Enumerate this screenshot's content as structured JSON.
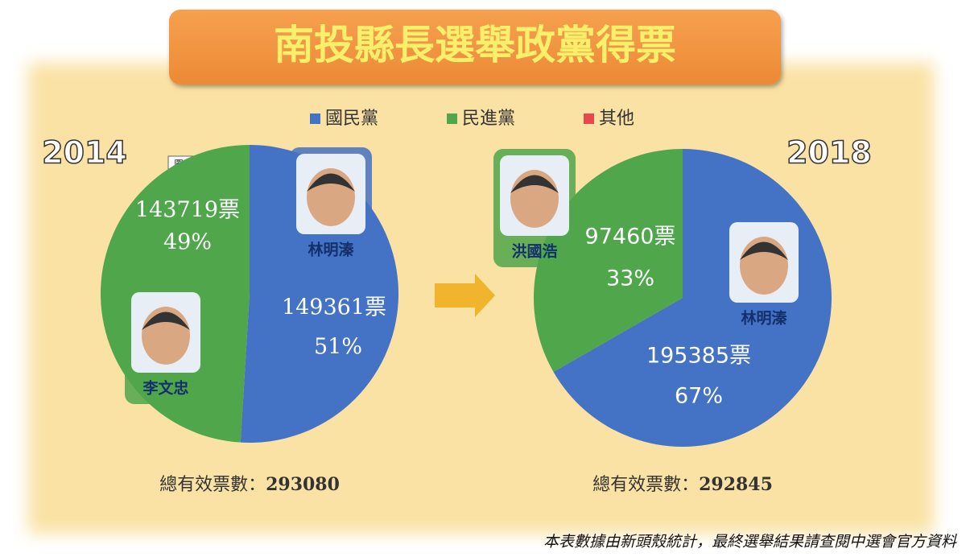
{
  "title": "南投縣長選舉政黨得票",
  "legend": [
    {
      "name": "國民黨",
      "color": "#4472c4"
    },
    {
      "name": "民進黨",
      "color": "#4fa64b"
    },
    {
      "name": "其他",
      "color": "#e8474c"
    }
  ],
  "tooltip": "圖表區",
  "footnote": "本表數據由新頭殼統計，最終選舉結果請查閱中選會官方資料",
  "chart_data": [
    {
      "type": "pie",
      "label": "2014",
      "values": [
        149361,
        143719
      ],
      "value_labels": [
        "149361票",
        "143719票"
      ],
      "shares": [
        51,
        49
      ],
      "share_labels": [
        "51%",
        "49%"
      ],
      "candidates": [
        "林明溱",
        "李文忠"
      ],
      "total_label": "總有效票數：",
      "total": 293080
    },
    {
      "type": "pie",
      "label": "2018",
      "values": [
        195385,
        97460
      ],
      "value_labels": [
        "195385票",
        "97460票"
      ],
      "shares": [
        67,
        33
      ],
      "share_labels": [
        "67%",
        "33%"
      ],
      "candidates": [
        "林明溱",
        "洪國浩"
      ],
      "total_label": "總有效票數：",
      "total": 292845
    }
  ]
}
